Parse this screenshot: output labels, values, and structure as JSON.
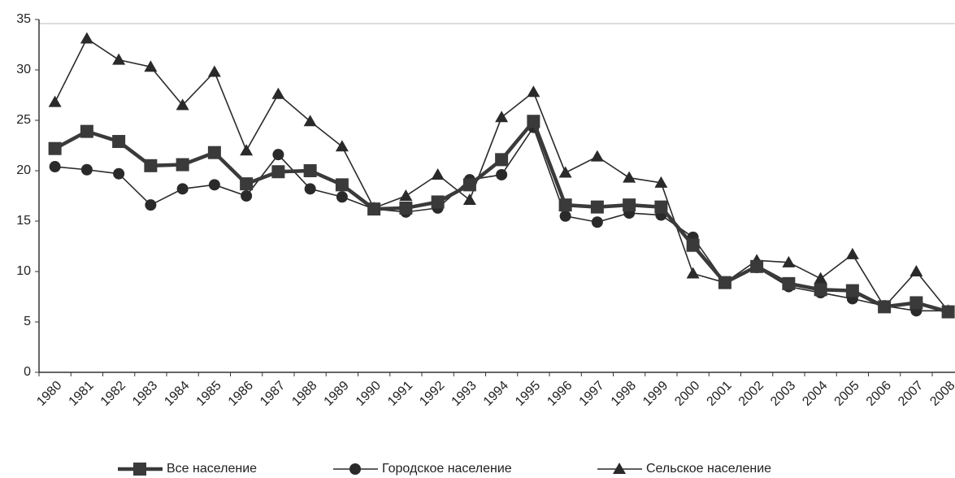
{
  "chart_data": {
    "type": "line",
    "categories": [
      "1980",
      "1981",
      "1982",
      "1983",
      "1984",
      "1985",
      "1986",
      "1987",
      "1988",
      "1989",
      "1990",
      "1991",
      "1992",
      "1993",
      "1994",
      "1995",
      "1996",
      "1997",
      "1998",
      "1999",
      "2000",
      "2001",
      "2002",
      "2003",
      "2004",
      "2005",
      "2006",
      "2007",
      "2008"
    ],
    "series": [
      {
        "name": "Все население",
        "color": "#3a3a3a",
        "marker": "square",
        "values": [
          22.2,
          23.9,
          22.9,
          20.5,
          20.6,
          21.8,
          18.7,
          19.9,
          20.0,
          18.6,
          16.2,
          16.3,
          16.9,
          18.6,
          21.1,
          24.9,
          16.6,
          16.4,
          16.6,
          16.4,
          12.6,
          8.9,
          10.5,
          8.8,
          8.2,
          8.1,
          6.5,
          6.9,
          6.0
        ]
      },
      {
        "name": "Городское население",
        "color": "#2a2a2a",
        "marker": "circle",
        "values": [
          20.4,
          20.1,
          19.7,
          16.6,
          18.2,
          18.6,
          17.5,
          21.6,
          18.2,
          17.4,
          16.2,
          15.9,
          16.3,
          19.1,
          19.6,
          24.3,
          15.5,
          14.9,
          15.8,
          15.6,
          13.4,
          8.9,
          10.4,
          8.5,
          7.9,
          7.3,
          6.6,
          6.1,
          6.1
        ]
      },
      {
        "name": "Сельское население",
        "color": "#2a2a2a",
        "marker": "triangle",
        "values": [
          26.8,
          33.1,
          31.0,
          30.3,
          26.5,
          29.8,
          22.0,
          27.6,
          24.9,
          22.4,
          16.3,
          17.5,
          19.6,
          17.1,
          25.3,
          27.8,
          19.8,
          21.4,
          19.3,
          18.8,
          9.8,
          8.9,
          11.1,
          10.9,
          9.3,
          11.7,
          6.5,
          10.0,
          6.1
        ]
      }
    ],
    "ylim": [
      0,
      35
    ],
    "yticks": [
      0,
      5,
      10,
      15,
      20,
      25,
      30,
      35
    ],
    "grid": false,
    "legend": "bottom"
  }
}
